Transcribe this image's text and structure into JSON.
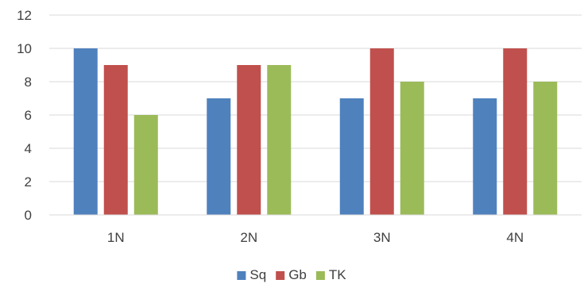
{
  "chart_data": {
    "type": "bar",
    "title": "",
    "xlabel": "",
    "ylabel": "",
    "categories": [
      "1N",
      "2N",
      "3N",
      "4N"
    ],
    "series": [
      {
        "name": "Sq",
        "color": "#4F81BD",
        "values": [
          10,
          7,
          7,
          7
        ]
      },
      {
        "name": "Gb",
        "color": "#C0504D",
        "values": [
          9,
          9,
          10,
          10
        ]
      },
      {
        "name": "TK",
        "color": "#9BBB59",
        "values": [
          6,
          9,
          8,
          8
        ]
      }
    ],
    "ylim": [
      0,
      12
    ],
    "yticks": [
      0,
      2,
      4,
      6,
      8,
      10,
      12
    ],
    "grid": true,
    "legend_position": "bottom"
  }
}
